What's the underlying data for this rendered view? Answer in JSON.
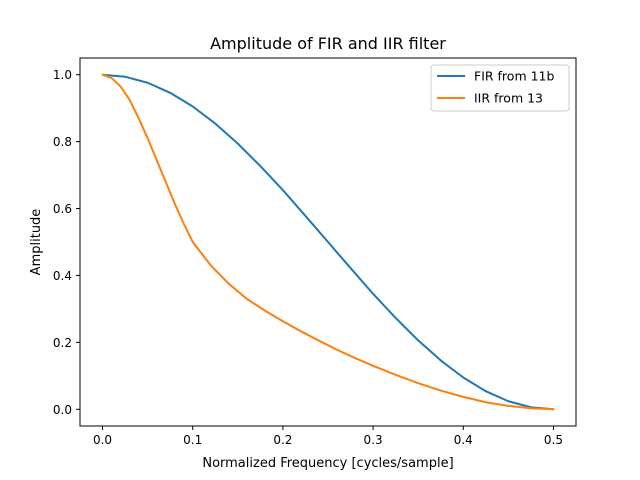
{
  "chart_data": {
    "type": "line",
    "title": "Amplitude of FIR and IIR filter",
    "xlabel": "Normalized Frequency [cycles/sample]",
    "ylabel": "Amplitude",
    "xlim": [
      -0.025,
      0.525
    ],
    "ylim": [
      -0.05,
      1.05
    ],
    "xticks": [
      "0.0",
      "0.1",
      "0.2",
      "0.3",
      "0.4",
      "0.5"
    ],
    "yticks": [
      "0.0",
      "0.2",
      "0.4",
      "0.6",
      "0.8",
      "1.0"
    ],
    "grid": false,
    "legend_position": "top-right",
    "series": [
      {
        "name": "FIR from 11b",
        "color": "#1f77b4",
        "x": [
          0.0,
          0.025,
          0.05,
          0.075,
          0.1,
          0.125,
          0.15,
          0.175,
          0.2,
          0.225,
          0.25,
          0.275,
          0.3,
          0.325,
          0.35,
          0.375,
          0.4,
          0.425,
          0.45,
          0.475,
          0.5
        ],
        "y": [
          1.0,
          0.994,
          0.976,
          0.946,
          0.905,
          0.854,
          0.794,
          0.727,
          0.655,
          0.578,
          0.5,
          0.422,
          0.345,
          0.273,
          0.206,
          0.146,
          0.095,
          0.054,
          0.024,
          0.006,
          0.0
        ]
      },
      {
        "name": "IIR from 13",
        "color": "#ff7f0e",
        "x": [
          0.0,
          0.01,
          0.02,
          0.03,
          0.04,
          0.05,
          0.06,
          0.07,
          0.08,
          0.09,
          0.1,
          0.12,
          0.14,
          0.16,
          0.18,
          0.2,
          0.22,
          0.24,
          0.26,
          0.28,
          0.3,
          0.325,
          0.35,
          0.375,
          0.4,
          0.425,
          0.45,
          0.475,
          0.5
        ],
        "y": [
          1.0,
          0.99,
          0.965,
          0.925,
          0.87,
          0.81,
          0.745,
          0.68,
          0.615,
          0.555,
          0.5,
          0.43,
          0.375,
          0.33,
          0.295,
          0.263,
          0.233,
          0.205,
          0.178,
          0.153,
          0.13,
          0.103,
          0.078,
          0.056,
          0.037,
          0.021,
          0.01,
          0.003,
          0.0
        ]
      }
    ]
  }
}
